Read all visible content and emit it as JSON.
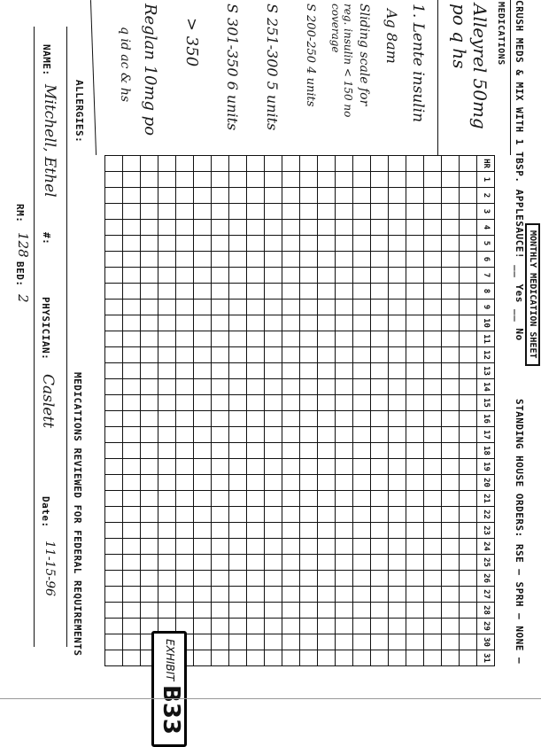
{
  "sheet": {
    "title": "MONTHLY MEDICATION SHEET",
    "crush_text": "CRUSH MEDS & MIX WITH 1 TBSP. APPLESAUCE! __ Yes __ No",
    "standing_orders": "STANDING HOUSE ORDERS: RSE — SPRH — NONE —",
    "medications_header": "MEDICATIONS",
    "hour_header": "HR",
    "days": [
      "1",
      "2",
      "3",
      "4",
      "5",
      "6",
      "7",
      "8",
      "9",
      "10",
      "11",
      "12",
      "13",
      "14",
      "15",
      "16",
      "17",
      "18",
      "19",
      "20",
      "21",
      "22",
      "23",
      "24",
      "25",
      "26",
      "27",
      "28",
      "29",
      "30",
      "31"
    ],
    "medications": [
      "Alleyrel 50mg po q hs",
      "1. Lente insulin",
      "Ag 8am",
      "Sliding scale for",
      "reg. insulin < 150 no coverage",
      "S 200-250   4 units",
      "S 251-300   5 units",
      "S 301-350   6 units",
      "> 350",
      "Reglan 10mg po",
      "q id ac & hs"
    ],
    "allergies_label": "ALLERGIES:",
    "name_label": "NAME:",
    "name_value": "Mitchell, Ethel",
    "number_label": "#:",
    "room_label": "RM:",
    "room_value": "128",
    "bed_label": "BED:",
    "bed_value": "2",
    "physician_label": "PHYSICIAN:",
    "physician_value": "Caslett",
    "review_text": "MEDICATIONS REVIEWED FOR FEDERAL REQUIREMENTS",
    "date_label": "Date:",
    "date_value": "11-15-96",
    "exhibit_label": "EXHIBIT",
    "exhibit_number": "B33"
  }
}
